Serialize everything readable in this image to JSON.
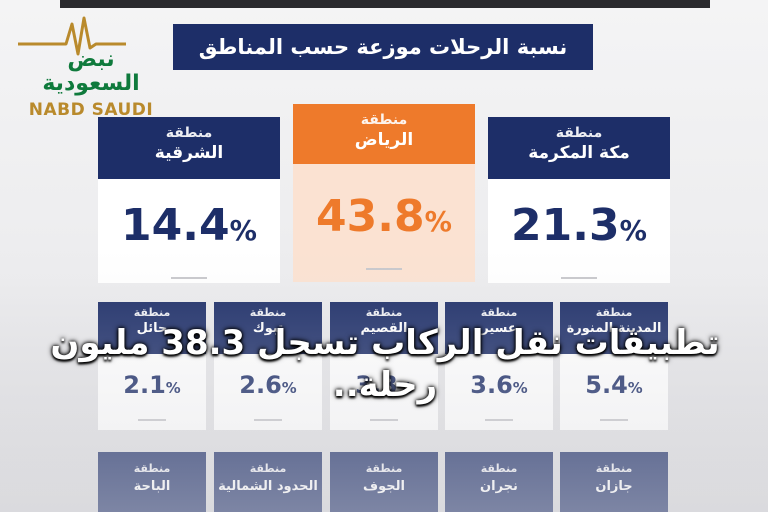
{
  "logo": {
    "arabic": "نبض السعودية",
    "english": "NABD SAUDI"
  },
  "title": "نسبة الرحلات موزعة حسب المناطق",
  "top_cards": [
    {
      "label": "منطقة",
      "name": "مكة المكرمة",
      "value": "21.3",
      "pct": "%"
    },
    {
      "label": "منطقة",
      "name": "الرياض",
      "value": "43.8",
      "pct": "%"
    },
    {
      "label": "منطقة",
      "name": "الشرقية",
      "value": "14.4",
      "pct": "%"
    }
  ],
  "mid_cards": [
    {
      "label": "منطقة",
      "name": "المدينة المنورة",
      "value": "5.4",
      "pct": "%"
    },
    {
      "label": "منطقة",
      "name": "عسير",
      "value": "3.6",
      "pct": "%"
    },
    {
      "label": "منطقة",
      "name": "القصيم",
      "value": "3.3",
      "pct": "%"
    },
    {
      "label": "منطقة",
      "name": "تبوك",
      "value": "2.6",
      "pct": "%"
    },
    {
      "label": "منطقة",
      "name": "حائل",
      "value": "2.1",
      "pct": "%"
    }
  ],
  "bottom_cards": [
    {
      "label": "منطقة",
      "name": "جازان"
    },
    {
      "label": "منطقة",
      "name": "نجران"
    },
    {
      "label": "منطقة",
      "name": "الجوف"
    },
    {
      "label": "منطقة",
      "name": "الحدود الشمالية"
    },
    {
      "label": "منطقة",
      "name": "الباحة"
    }
  ],
  "caption": "تطبيقات نقل الركاب تسجل 38.3 مليون رحلة..",
  "colors": {
    "navy": "#1d2e68",
    "orange": "#ee7a2b",
    "logo_green": "#0f7a3c",
    "logo_gold": "#b98a2c"
  }
}
